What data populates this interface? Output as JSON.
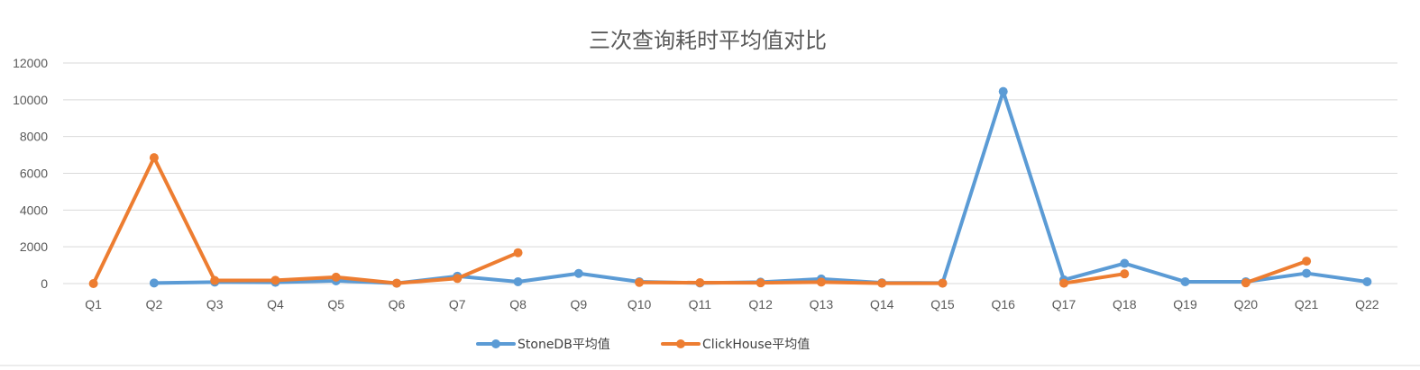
{
  "chart_data": {
    "type": "line",
    "title": "三次查询耗时平均值对比",
    "xlabel": "",
    "ylabel": "",
    "categories": [
      "Q1",
      "Q2",
      "Q3",
      "Q4",
      "Q5",
      "Q6",
      "Q7",
      "Q8",
      "Q9",
      "Q10",
      "Q11",
      "Q12",
      "Q13",
      "Q14",
      "Q15",
      "Q16",
      "Q17",
      "Q18",
      "Q19",
      "Q20",
      "Q21",
      "Q22"
    ],
    "ylim": [
      0,
      12000
    ],
    "yticks": [
      0,
      2000,
      4000,
      6000,
      8000,
      10000,
      12000
    ],
    "grid": true,
    "legend_position": "bottom",
    "series": [
      {
        "name": "StoneDB平均值",
        "color": "#5B9BD5",
        "values": [
          null,
          30,
          80,
          70,
          150,
          20,
          400,
          100,
          550,
          100,
          30,
          80,
          250,
          40,
          30,
          10450,
          200,
          1100,
          100,
          100,
          560,
          100
        ]
      },
      {
        "name": "ClickHouse平均值",
        "color": "#ED7D31",
        "values": [
          0,
          6850,
          170,
          180,
          350,
          20,
          280,
          1680,
          null,
          60,
          50,
          40,
          80,
          20,
          20,
          null,
          20,
          530,
          null,
          40,
          1220,
          null
        ]
      }
    ]
  }
}
